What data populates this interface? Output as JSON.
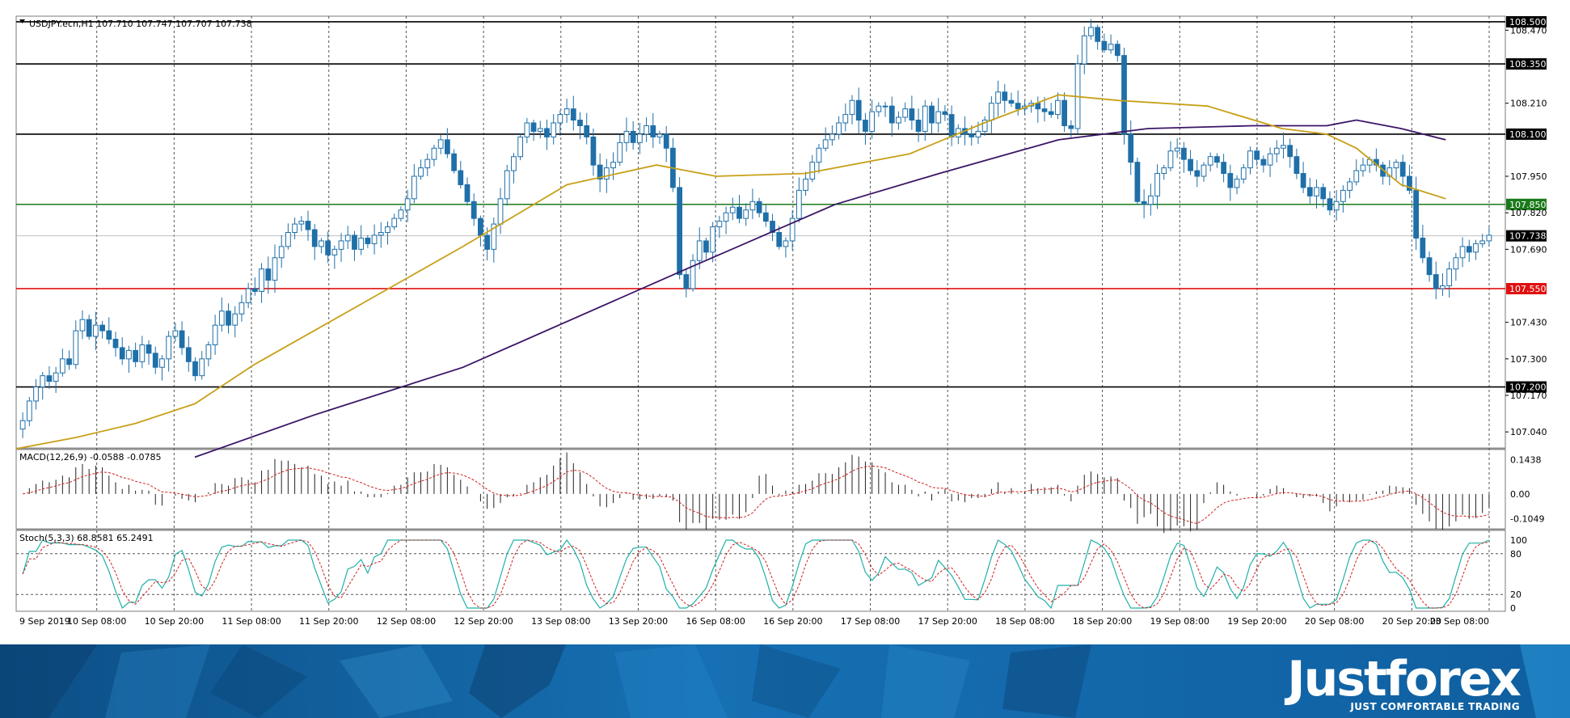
{
  "chart_data": {
    "type": "candlestick",
    "symbol_header": "USDJPY.ecn,H1  107.710 107.747 107.707 107.738",
    "current_price": "107.738",
    "price_axis": {
      "ylim": [
        106.98,
        108.52
      ],
      "ticks": [
        "108.470",
        "108.210",
        "107.950",
        "107.820",
        "107.690",
        "107.430",
        "107.300",
        "107.170",
        "107.040"
      ]
    },
    "levels": [
      {
        "label": "108.500",
        "value": 108.5,
        "color": "#000000"
      },
      {
        "label": "108.350",
        "value": 108.35,
        "color": "#000000"
      },
      {
        "label": "108.100",
        "value": 108.1,
        "color": "#000000"
      },
      {
        "label": "107.850",
        "value": 107.85,
        "color": "#1a7a1a"
      },
      {
        "label": "107.550",
        "value": 107.55,
        "color": "#e01010"
      },
      {
        "label": "107.200",
        "value": 107.2,
        "color": "#000000"
      }
    ],
    "time_labels": [
      "9 Sep 2019",
      "10 Sep 08:00",
      "10 Sep 20:00",
      "11 Sep 08:00",
      "11 Sep 20:00",
      "12 Sep 08:00",
      "12 Sep 20:00",
      "13 Sep 08:00",
      "13 Sep 20:00",
      "16 Sep 08:00",
      "16 Sep 20:00",
      "17 Sep 08:00",
      "17 Sep 20:00",
      "18 Sep 08:00",
      "18 Sep 20:00",
      "19 Sep 08:00",
      "19 Sep 20:00",
      "20 Sep 08:00",
      "20 Sep 20:00",
      "23 Sep 08:00"
    ],
    "bar_closes": [
      107.08,
      107.15,
      107.2,
      107.24,
      107.22,
      107.25,
      107.3,
      107.28,
      107.4,
      107.44,
      107.38,
      107.42,
      107.4,
      107.37,
      107.34,
      107.3,
      107.33,
      107.29,
      107.35,
      107.32,
      107.27,
      107.3,
      107.38,
      107.4,
      107.34,
      107.29,
      107.24,
      107.3,
      107.35,
      107.42,
      107.47,
      107.42,
      107.46,
      107.5,
      107.55,
      107.54,
      107.62,
      107.58,
      107.66,
      107.7,
      107.75,
      107.78,
      107.79,
      107.76,
      107.7,
      107.72,
      107.67,
      107.69,
      107.72,
      107.74,
      107.69,
      107.73,
      107.71,
      107.74,
      107.75,
      107.77,
      107.8,
      107.83,
      107.87,
      107.95,
      107.98,
      108.01,
      108.05,
      108.08,
      108.03,
      107.97,
      107.92,
      107.86,
      107.8,
      107.74,
      107.69,
      107.78,
      107.87,
      107.97,
      108.02,
      108.09,
      108.14,
      108.11,
      108.12,
      108.09,
      108.14,
      108.17,
      108.19,
      108.15,
      108.13,
      108.09,
      107.99,
      107.94,
      107.98,
      108.0,
      108.07,
      108.11,
      108.07,
      108.1,
      108.13,
      108.09,
      108.1,
      108.05,
      107.91,
      107.6,
      107.55,
      107.65,
      107.72,
      107.68,
      107.77,
      107.79,
      107.82,
      107.84,
      107.8,
      107.83,
      107.86,
      107.82,
      107.79,
      107.75,
      107.7,
      107.72,
      107.8,
      107.9,
      107.94,
      108.0,
      108.05,
      108.08,
      108.1,
      108.14,
      108.17,
      108.22,
      108.15,
      108.11,
      108.18,
      108.2,
      108.2,
      108.14,
      108.16,
      108.19,
      108.15,
      108.11,
      108.2,
      108.14,
      108.18,
      108.17,
      108.09,
      108.12,
      108.1,
      108.09,
      108.11,
      108.15,
      108.21,
      108.25,
      108.22,
      108.21,
      108.19,
      108.2,
      108.21,
      108.19,
      108.18,
      108.17,
      108.22,
      108.13,
      108.12,
      108.35,
      108.45,
      108.48,
      108.43,
      108.4,
      108.42,
      108.38,
      108.1,
      108.0,
      107.86,
      107.85,
      107.88,
      107.96,
      107.98,
      108.04,
      108.05,
      108.01,
      107.97,
      107.95,
      107.99,
      108.02,
      108.0,
      107.96,
      107.91,
      107.94,
      107.98,
      108.04,
      108.01,
      107.99,
      108.03,
      108.05,
      108.06,
      108.02,
      107.96,
      107.91,
      107.88,
      107.91,
      107.87,
      107.83,
      107.86,
      107.9,
      107.93,
      107.97,
      107.99,
      108.01,
      107.99,
      107.95,
      107.98,
      108.0,
      107.95,
      107.9,
      107.73,
      107.66,
      107.6,
      107.55,
      107.56,
      107.62,
      107.66,
      107.7,
      107.68,
      107.71,
      107.72,
      107.74
    ],
    "series": [
      {
        "name": "MA slow (purple)",
        "color": "#3b1566",
        "values": [
          [
            0.12,
            106.95
          ],
          [
            0.2,
            107.1
          ],
          [
            0.3,
            107.27
          ],
          [
            0.45,
            107.62
          ],
          [
            0.55,
            107.85
          ],
          [
            0.62,
            107.96
          ],
          [
            0.7,
            108.08
          ],
          [
            0.76,
            108.12
          ],
          [
            0.83,
            108.13
          ],
          [
            0.88,
            108.13
          ],
          [
            0.9,
            108.15
          ],
          [
            0.93,
            108.12
          ],
          [
            0.96,
            108.08
          ]
        ]
      },
      {
        "name": "MA fast (gold)",
        "color": "#c8a018",
        "values": [
          [
            0.0,
            106.98
          ],
          [
            0.04,
            107.02
          ],
          [
            0.08,
            107.07
          ],
          [
            0.12,
            107.14
          ],
          [
            0.16,
            107.28
          ],
          [
            0.24,
            107.52
          ],
          [
            0.3,
            107.7
          ],
          [
            0.37,
            107.92
          ],
          [
            0.43,
            107.99
          ],
          [
            0.47,
            107.95
          ],
          [
            0.53,
            107.96
          ],
          [
            0.6,
            108.03
          ],
          [
            0.65,
            108.14
          ],
          [
            0.7,
            108.24
          ],
          [
            0.74,
            108.22
          ],
          [
            0.8,
            108.2
          ],
          [
            0.85,
            108.12
          ],
          [
            0.88,
            108.1
          ],
          [
            0.9,
            108.05
          ],
          [
            0.93,
            107.92
          ],
          [
            0.96,
            107.87
          ]
        ]
      }
    ],
    "macd": {
      "label": "MACD(12,26,9) -0.0588 -0.0785",
      "ticks": [
        "0.1438",
        "0.00",
        "-0.1049"
      ],
      "ylim": [
        -0.14,
        0.18
      ]
    },
    "stoch": {
      "label": "Stoch(5,3,3) 68.8581 65.2491",
      "ticks": [
        "100",
        "80",
        "20",
        "0"
      ],
      "levels": [
        80,
        20
      ]
    }
  },
  "branding": {
    "name": "Justforex",
    "tagline": "JUST COMFORTABLE TRADING"
  }
}
